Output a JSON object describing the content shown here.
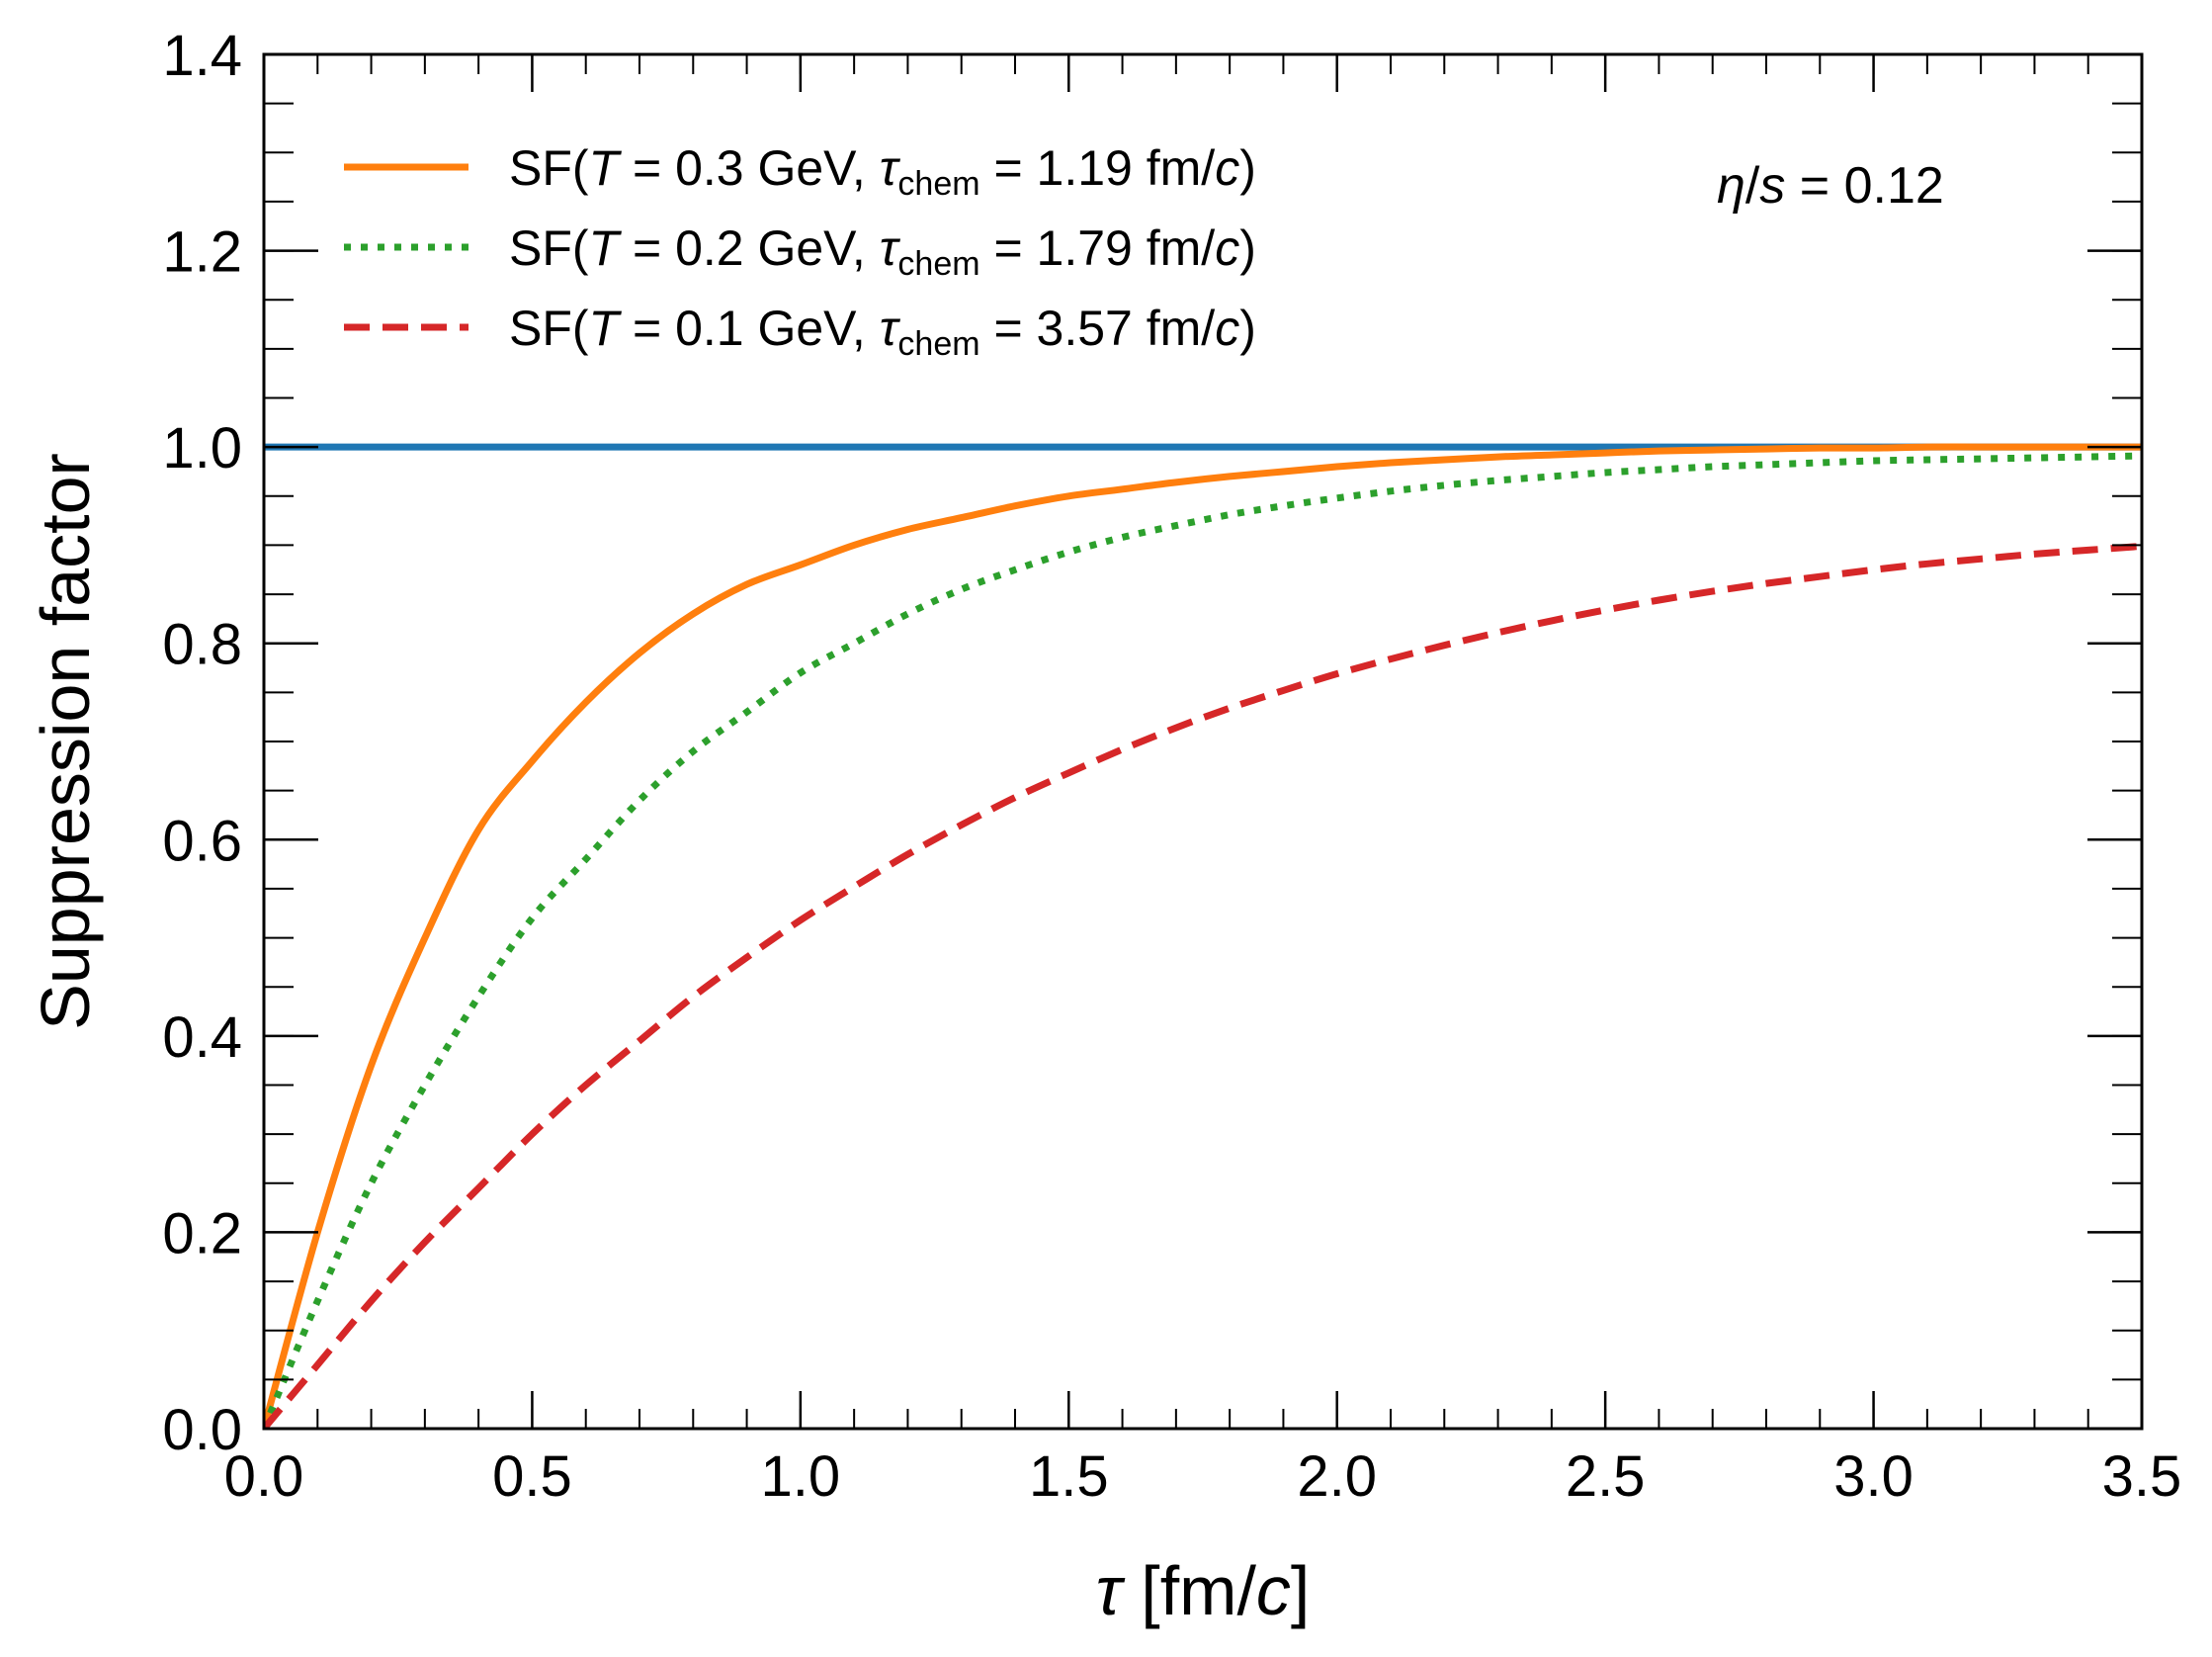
{
  "chart_data": {
    "type": "line",
    "xlabel": {
      "symbol": "τ",
      "unit_open": "[fm/",
      "unit_italic": "c",
      "unit_close": "]"
    },
    "ylabel": "Suppression factor",
    "xlim": [
      0.0,
      3.5
    ],
    "ylim": [
      0.0,
      1.4
    ],
    "xticks": [
      0.0,
      0.5,
      1.0,
      1.5,
      2.0,
      2.5,
      3.0,
      3.5
    ],
    "xtick_labels": [
      "0.0",
      "0.5",
      "1.0",
      "1.5",
      "2.0",
      "2.5",
      "3.0",
      "3.5"
    ],
    "yticks": [
      0.0,
      0.2,
      0.4,
      0.6,
      0.8,
      1.0,
      1.2,
      1.4
    ],
    "ytick_labels": [
      "0.0",
      "0.2",
      "0.4",
      "0.6",
      "0.8",
      "1.0",
      "1.2",
      "1.4"
    ],
    "x_minor_step": 0.1,
    "y_minor_step": 0.05,
    "grid": false,
    "legend_position": "upper-left",
    "annotation": {
      "symbol": "η",
      "sep": "/",
      "var": "s",
      "value": " = 0.12",
      "position": "top-right"
    },
    "reference_line": {
      "y": 1.0,
      "color": "#1f77b4"
    },
    "x": [
      0.0,
      0.1,
      0.2,
      0.3,
      0.4,
      0.5,
      0.6,
      0.7,
      0.8,
      0.9,
      1.0,
      1.1,
      1.2,
      1.3,
      1.4,
      1.5,
      1.6,
      1.7,
      1.8,
      1.9,
      2.0,
      2.1,
      2.2,
      2.3,
      2.4,
      2.5,
      2.6,
      2.7,
      2.8,
      2.9,
      3.0,
      3.1,
      3.2,
      3.3,
      3.4,
      3.5
    ],
    "series": [
      {
        "name": "SF(T = 0.3 GeV, τchem = 1.19 fm/c)",
        "label": {
          "prefix": "SF(",
          "T": "T",
          "T_value": " = 0.3 GeV, ",
          "tau": "τ",
          "tau_sub": "chem",
          "tau_value": " = 1.19 fm/",
          "c": "c",
          "suffix": ")"
        },
        "color": "#ff7f0e",
        "style": "solid",
        "values": [
          0.0,
          0.2,
          0.37,
          0.5,
          0.61,
          0.68,
          0.74,
          0.79,
          0.83,
          0.86,
          0.88,
          0.9,
          0.916,
          0.928,
          0.94,
          0.95,
          0.957,
          0.964,
          0.97,
          0.975,
          0.98,
          0.984,
          0.987,
          0.99,
          0.992,
          0.994,
          0.996,
          0.997,
          0.998,
          0.999,
          0.999,
          1.0,
          1.0,
          1.0,
          1.0,
          1.0
        ]
      },
      {
        "name": "SF(T = 0.2 GeV, τchem = 1.79 fm/c)",
        "label": {
          "prefix": "SF(",
          "T": "T",
          "T_value": " = 0.2 GeV, ",
          "tau": "τ",
          "tau_sub": "chem",
          "tau_value": " = 1.79 fm/",
          "c": "c",
          "suffix": ")"
        },
        "color": "#2ca02c",
        "style": "dotted",
        "values": [
          0.0,
          0.13,
          0.25,
          0.35,
          0.44,
          0.52,
          0.58,
          0.64,
          0.69,
          0.73,
          0.77,
          0.8,
          0.83,
          0.855,
          0.875,
          0.893,
          0.908,
          0.92,
          0.931,
          0.94,
          0.948,
          0.955,
          0.961,
          0.966,
          0.97,
          0.974,
          0.977,
          0.98,
          0.982,
          0.984,
          0.986,
          0.987,
          0.988,
          0.989,
          0.99,
          0.991
        ]
      },
      {
        "name": "SF(T = 0.1 GeV, τchem = 3.57 fm/c)",
        "label": {
          "prefix": "SF(",
          "T": "T",
          "T_value": " = 0.1 GeV, ",
          "tau": "τ",
          "tau_sub": "chem",
          "tau_value": " = 3.57 fm/",
          "c": "c",
          "suffix": ")"
        },
        "color": "#d62728",
        "style": "dashed",
        "values": [
          0.0,
          0.065,
          0.13,
          0.19,
          0.245,
          0.3,
          0.35,
          0.395,
          0.44,
          0.48,
          0.518,
          0.552,
          0.585,
          0.615,
          0.643,
          0.668,
          0.692,
          0.714,
          0.734,
          0.752,
          0.769,
          0.784,
          0.798,
          0.811,
          0.823,
          0.834,
          0.844,
          0.853,
          0.861,
          0.868,
          0.875,
          0.881,
          0.886,
          0.891,
          0.895,
          0.899
        ]
      }
    ]
  }
}
